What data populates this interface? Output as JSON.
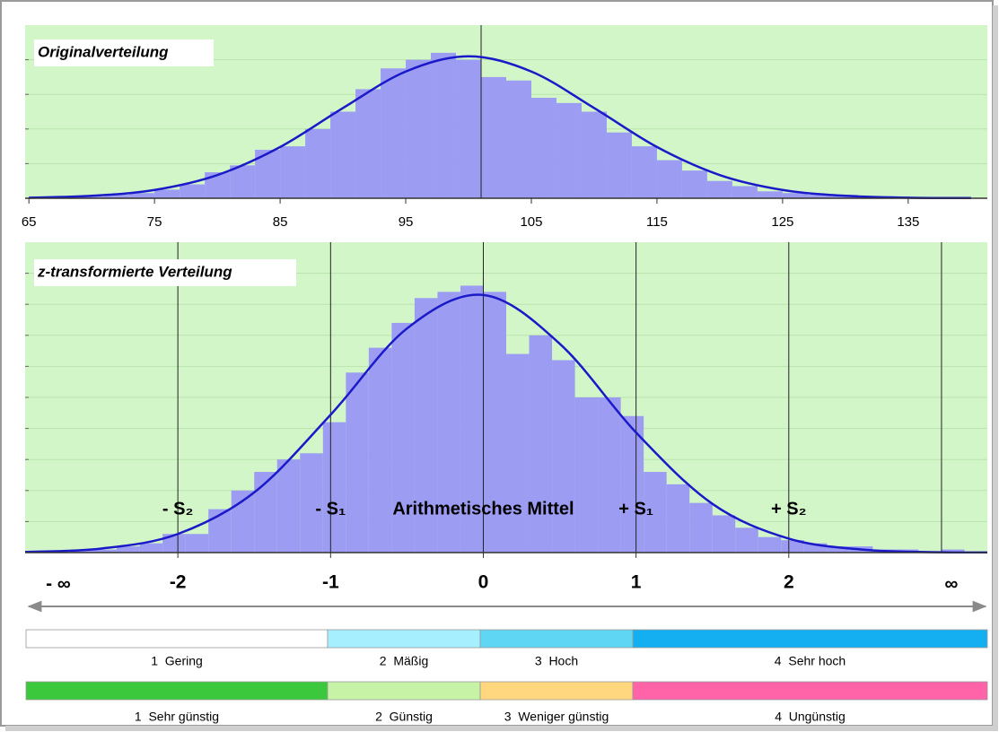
{
  "chart_data": [
    {
      "type": "histogram",
      "title": "Originalverteilung",
      "bins": [
        65,
        67,
        69,
        71,
        73,
        75,
        77,
        79,
        81,
        83,
        85,
        87,
        89,
        91,
        93,
        95,
        97,
        99,
        101,
        103,
        105,
        107,
        109,
        111,
        113,
        115,
        117,
        119,
        121,
        123,
        125,
        127,
        129,
        131,
        133,
        135,
        137,
        139,
        141
      ],
      "counts": [
        0,
        1,
        1,
        2,
        3,
        5,
        8,
        15,
        19,
        28,
        30,
        40,
        50,
        63,
        75,
        80,
        84,
        80,
        70,
        68,
        58,
        55,
        50,
        38,
        30,
        22,
        16,
        10,
        7,
        4,
        3,
        2,
        2,
        1,
        1,
        0,
        0,
        0
      ],
      "color": "#9c9cf2",
      "curve": {
        "x": [
          65,
          70,
          75,
          80,
          85,
          90,
          95,
          100,
          105,
          110,
          115,
          120,
          125,
          130,
          135,
          140
        ],
        "values": [
          0.3,
          1.4,
          4.8,
          13.4,
          29.6,
          52.1,
          73.2,
          82,
          73.2,
          52.1,
          29.6,
          13.4,
          4.8,
          1.4,
          0.3,
          0.1
        ],
        "color": "#1a1ac8"
      },
      "xlim": [
        64.7,
        141.3
      ],
      "ylim": [
        0,
        100
      ],
      "xticks": [
        65,
        75,
        85,
        95,
        105,
        115,
        125,
        135
      ],
      "yticks": [
        20,
        40,
        60,
        80
      ],
      "vlines": [
        101
      ],
      "grid": true
    },
    {
      "type": "histogram",
      "title": "z-transformierte Verteilung",
      "bins": [
        -3,
        -2.85,
        -2.7,
        -2.55,
        -2.4,
        -2.25,
        -2.1,
        -1.95,
        -1.8,
        -1.65,
        -1.5,
        -1.35,
        -1.2,
        -1.05,
        -0.9,
        -0.75,
        -0.6,
        -0.45,
        -0.3,
        -0.15,
        0,
        0.15,
        0.3,
        0.45,
        0.6,
        0.75,
        0.9,
        1.05,
        1.2,
        1.35,
        1.5,
        1.65,
        1.8,
        1.95,
        2.1,
        2.25,
        2.4,
        2.55,
        2.7,
        2.85,
        3,
        3.15,
        3.3
      ],
      "counts": [
        0,
        0,
        1,
        1,
        2,
        3,
        6,
        6,
        14,
        20,
        26,
        30,
        32,
        42,
        58,
        66,
        74,
        82,
        84,
        86,
        84,
        64,
        70,
        62,
        50,
        50,
        44,
        26,
        22,
        16,
        12,
        8,
        5,
        4,
        3,
        2,
        2,
        1,
        1,
        0,
        1,
        0
      ],
      "color": "#9c9cf2",
      "curve": {
        "x": [
          -3,
          -2.5,
          -2,
          -1.5,
          -1,
          -0.5,
          0,
          0.5,
          1,
          1.5,
          2,
          2.5,
          3,
          3.3
        ],
        "values": [
          0.2,
          1.3,
          6,
          19.4,
          44.4,
          72.2,
          83,
          67.3,
          38.7,
          15.7,
          4.5,
          0.9,
          0.1,
          0.05
        ],
        "color": "#1a1ac8"
      },
      "xlim": [
        -3,
        3.3
      ],
      "ylim": [
        0,
        100
      ],
      "xticks": [
        -2,
        -1,
        0,
        1,
        2
      ],
      "yticks": [
        10,
        20,
        30,
        40,
        50,
        60,
        70,
        80,
        90
      ],
      "vlines": [
        -2,
        -1,
        0,
        1,
        2,
        3
      ],
      "grid": true,
      "axis_ends": [
        "- ∞",
        "∞"
      ],
      "annotations": [
        {
          "text": "- S₂",
          "x": -2
        },
        {
          "text": "- S₁",
          "x": -1
        },
        {
          "text": "Arithmetisches Mittel",
          "x": 0
        },
        {
          "text": "+ S₁",
          "x": 1
        },
        {
          "text": "+ S₂",
          "x": 2
        }
      ]
    }
  ],
  "scales": [
    {
      "segments": [
        {
          "label": "1  Gering",
          "color": "#ffffff"
        },
        {
          "label": "2  Mäßig",
          "color": "#a6efff"
        },
        {
          "label": "3  Hoch",
          "color": "#5fd6f4"
        },
        {
          "label": "4  Sehr hoch",
          "color": "#14aff0"
        }
      ]
    },
    {
      "segments": [
        {
          "label": "1  Sehr günstig",
          "color": "#3cc83c"
        },
        {
          "label": "2  Günstig",
          "color": "#c6f3a6"
        },
        {
          "label": "3  Weniger günstig",
          "color": "#ffd77e"
        },
        {
          "label": "4  Ungünstig",
          "color": "#ff64a8"
        }
      ]
    }
  ]
}
